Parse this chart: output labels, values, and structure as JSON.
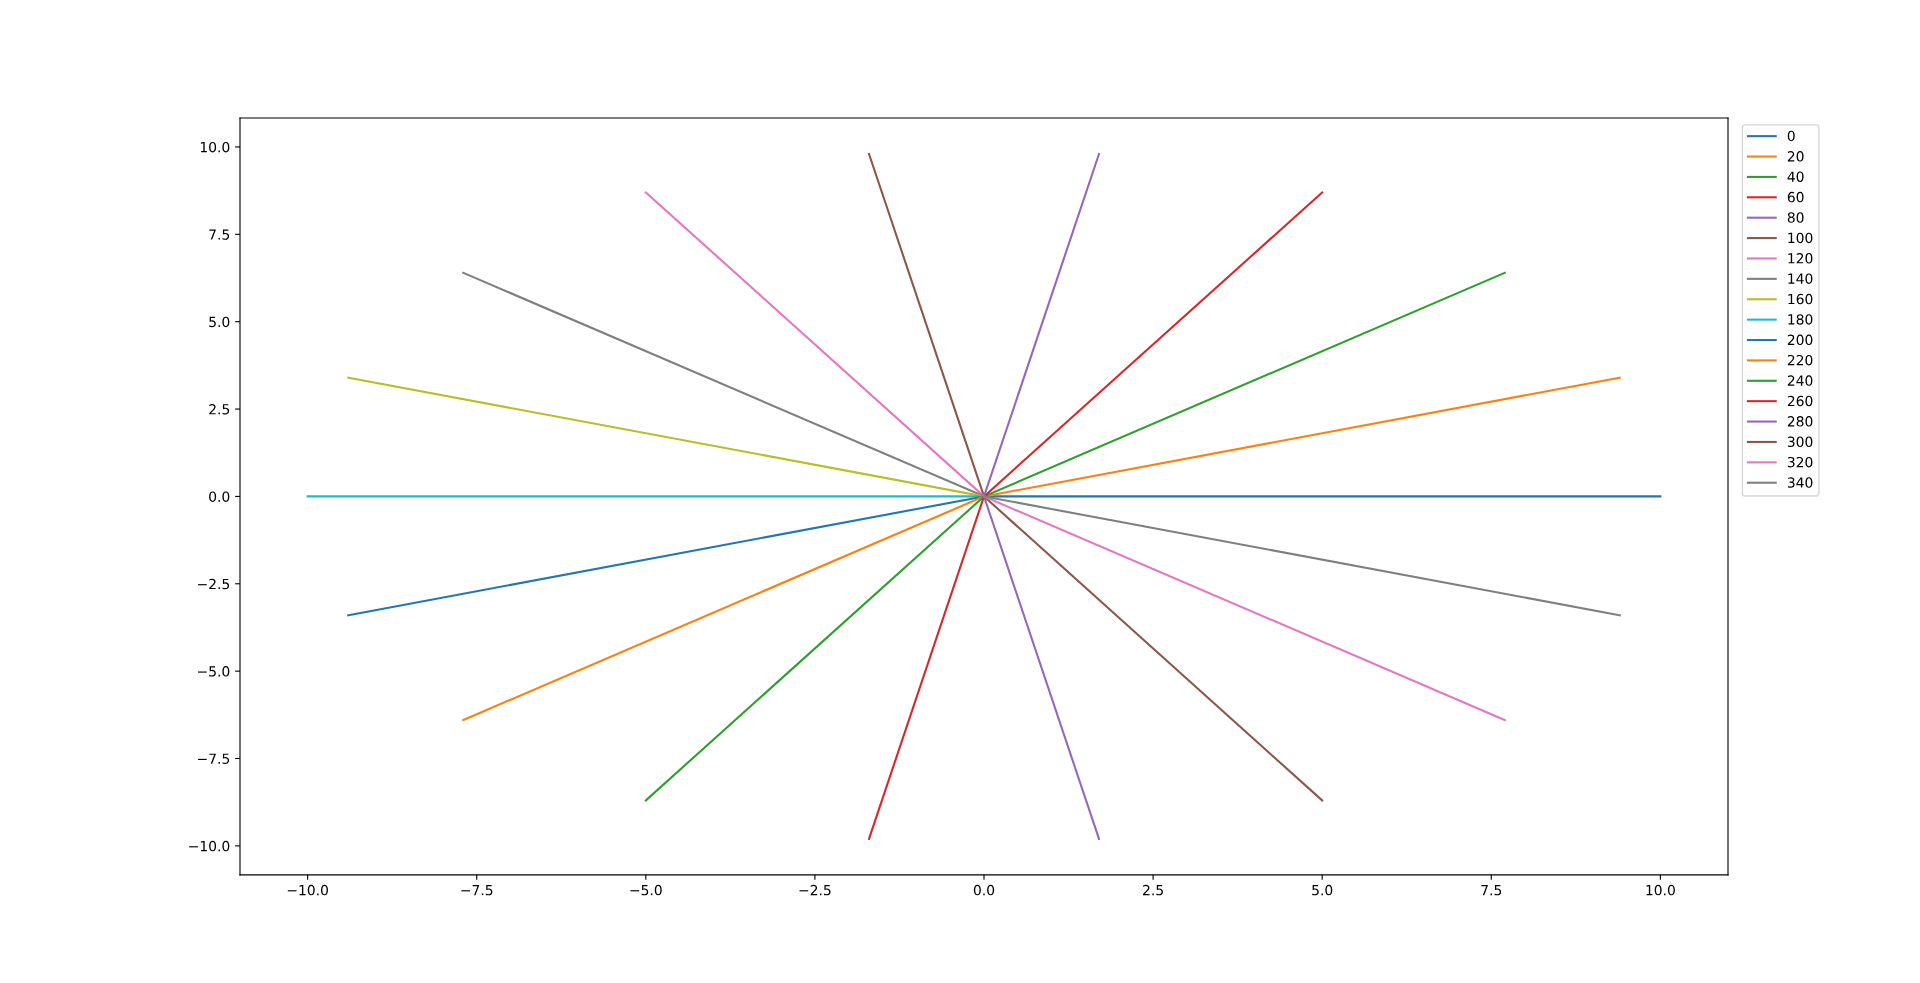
{
  "chart_data": {
    "type": "line",
    "xlim": [
      -11,
      11
    ],
    "ylim": [
      -10.83,
      10.83
    ],
    "xticks": [
      {
        "value": -10,
        "label": "−10.0"
      },
      {
        "value": -7.5,
        "label": "−7.5"
      },
      {
        "value": -5,
        "label": "−5.0"
      },
      {
        "value": -2.5,
        "label": "−2.5"
      },
      {
        "value": 0,
        "label": "0.0"
      },
      {
        "value": 2.5,
        "label": "2.5"
      },
      {
        "value": 5,
        "label": "5.0"
      },
      {
        "value": 7.5,
        "label": "7.5"
      },
      {
        "value": 10,
        "label": "10.0"
      }
    ],
    "yticks": [
      {
        "value": -10,
        "label": "−10.0"
      },
      {
        "value": -7.5,
        "label": "−7.5"
      },
      {
        "value": -5,
        "label": "−5.0"
      },
      {
        "value": -2.5,
        "label": "−2.5"
      },
      {
        "value": 0,
        "label": "0.0"
      },
      {
        "value": 2.5,
        "label": "2.5"
      },
      {
        "value": 5,
        "label": "5.0"
      },
      {
        "value": 7.5,
        "label": "7.5"
      },
      {
        "value": 10,
        "label": "10.0"
      }
    ],
    "legend": "top right",
    "grid": false,
    "series": [
      {
        "name": "0",
        "color": "#1f77b4",
        "x": [
          0,
          10
        ],
        "values": [
          0,
          0
        ]
      },
      {
        "name": "20",
        "color": "#ff7f0e",
        "x": [
          0,
          9.4
        ],
        "values": [
          0,
          3.4
        ]
      },
      {
        "name": "40",
        "color": "#2ca02c",
        "x": [
          0,
          7.7
        ],
        "values": [
          0,
          6.4
        ]
      },
      {
        "name": "60",
        "color": "#d62728",
        "x": [
          0,
          5.0
        ],
        "values": [
          0,
          8.7
        ]
      },
      {
        "name": "80",
        "color": "#9467bd",
        "x": [
          0,
          1.7
        ],
        "values": [
          0,
          9.8
        ]
      },
      {
        "name": "100",
        "color": "#8c564b",
        "x": [
          0,
          -1.7
        ],
        "values": [
          0,
          9.8
        ]
      },
      {
        "name": "120",
        "color": "#e377c2",
        "x": [
          0,
          -5.0
        ],
        "values": [
          0,
          8.7
        ]
      },
      {
        "name": "140",
        "color": "#7f7f7f",
        "x": [
          0,
          -7.7
        ],
        "values": [
          0,
          6.4
        ]
      },
      {
        "name": "160",
        "color": "#bcbd22",
        "x": [
          0,
          -9.4
        ],
        "values": [
          0,
          3.4
        ]
      },
      {
        "name": "180",
        "color": "#17becf",
        "x": [
          0,
          -10
        ],
        "values": [
          0,
          0
        ]
      },
      {
        "name": "200",
        "color": "#1f77b4",
        "x": [
          0,
          -9.4
        ],
        "values": [
          0,
          -3.4
        ]
      },
      {
        "name": "220",
        "color": "#ff7f0e",
        "x": [
          0,
          -7.7
        ],
        "values": [
          0,
          -6.4
        ]
      },
      {
        "name": "240",
        "color": "#2ca02c",
        "x": [
          0,
          -5.0
        ],
        "values": [
          0,
          -8.7
        ]
      },
      {
        "name": "260",
        "color": "#d62728",
        "x": [
          0,
          -1.7
        ],
        "values": [
          0,
          -9.8
        ]
      },
      {
        "name": "280",
        "color": "#9467bd",
        "x": [
          0,
          1.7
        ],
        "values": [
          0,
          -9.8
        ]
      },
      {
        "name": "300",
        "color": "#8c564b",
        "x": [
          0,
          5.0
        ],
        "values": [
          0,
          -8.7
        ]
      },
      {
        "name": "320",
        "color": "#e377c2",
        "x": [
          0,
          7.7
        ],
        "values": [
          0,
          -6.4
        ]
      },
      {
        "name": "340",
        "color": "#7f7f7f",
        "x": [
          0,
          9.4
        ],
        "values": [
          0,
          -3.4
        ]
      }
    ]
  }
}
